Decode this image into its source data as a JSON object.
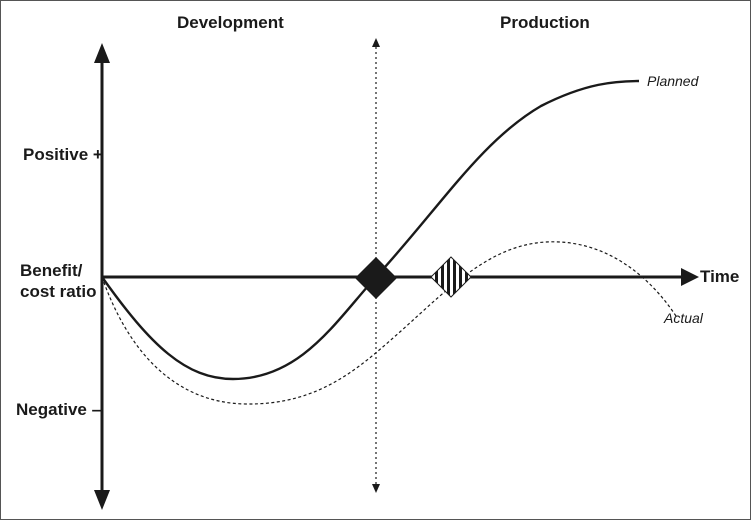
{
  "sections": {
    "left": "Development",
    "right": "Production"
  },
  "yaxis": {
    "positive": "Positive +",
    "middle_line1": "Benefit/",
    "middle_line2": "cost ratio",
    "negative": "Negative –"
  },
  "xaxis": {
    "label": "Time"
  },
  "curves": {
    "planned": "Planned",
    "actual": "Actual"
  },
  "markers": {
    "diamond": "diamond-marker",
    "striped": "striped-diamond-marker"
  }
}
